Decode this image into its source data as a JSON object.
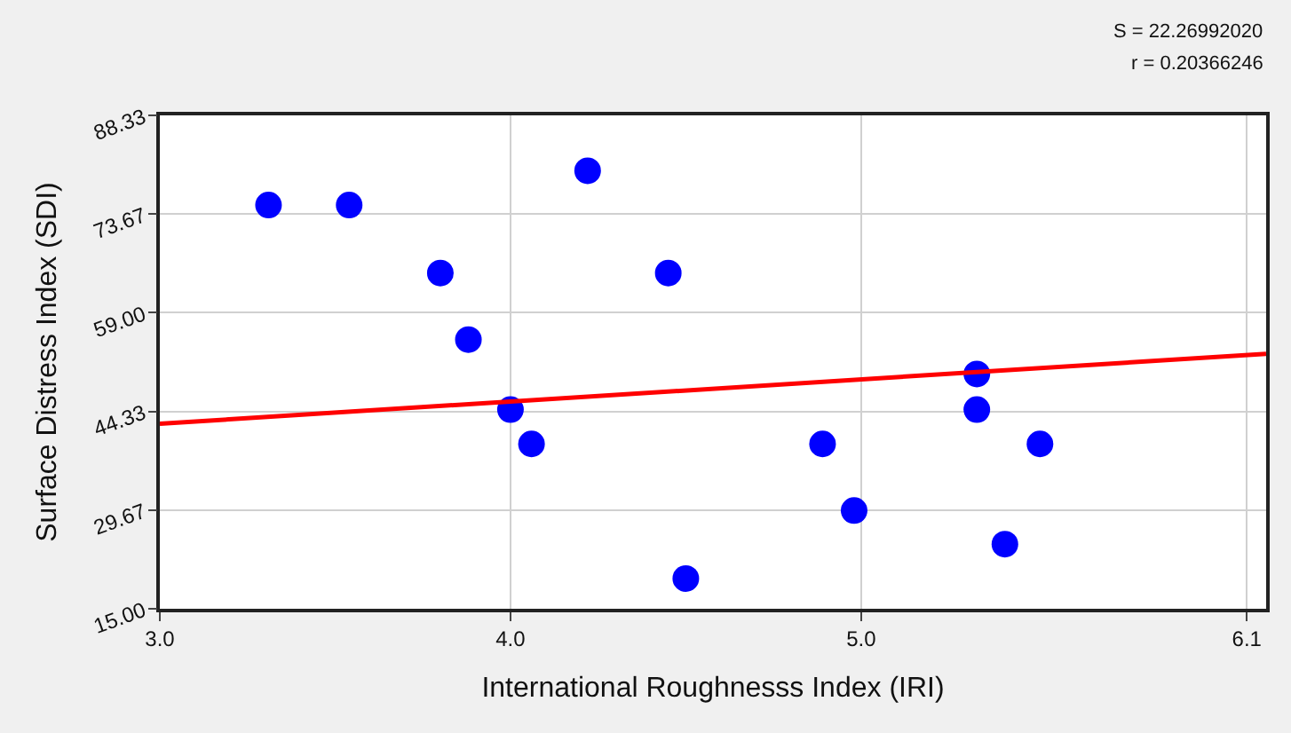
{
  "chart_data": {
    "type": "scatter",
    "xlabel": "International Roughnesss Index (IRI)",
    "ylabel": "Surface Distress Index (SDI)",
    "annotations": [
      "S = 22.26992020",
      "r = 0.20366246"
    ],
    "xlim": [
      3.0,
      6.155
    ],
    "xticks": [
      {
        "value": 3.0,
        "label": "3.0"
      },
      {
        "value": 4.0,
        "label": "4.0"
      },
      {
        "value": 5.0,
        "label": "5.0"
      },
      {
        "value": 6.1,
        "label": "6.1"
      }
    ],
    "ylim": [
      15.0,
      88.33
    ],
    "yticks": [
      {
        "value": 15.0,
        "label": "15.00"
      },
      {
        "value": 29.67,
        "label": "29.67"
      },
      {
        "value": 44.33,
        "label": "44.33"
      },
      {
        "value": 59.0,
        "label": "59.00"
      },
      {
        "value": 73.67,
        "label": "73.67"
      },
      {
        "value": 88.33,
        "label": "88.33"
      }
    ],
    "grid": true,
    "marker": "circle",
    "series": [
      {
        "color": "#0000ff",
        "x": [
          3.31,
          3.54,
          3.8,
          3.88,
          4.0,
          4.06,
          4.22,
          4.45,
          4.5,
          4.89,
          4.98,
          5.33,
          5.33,
          5.41,
          5.51
        ],
        "values": [
          75.0,
          75.0,
          64.9,
          55.0,
          44.6,
          39.5,
          80.1,
          64.9,
          19.5,
          39.5,
          29.6,
          49.9,
          44.6,
          24.6,
          39.5
        ]
      },
      {
        "type": "line",
        "color": "#ff0000",
        "marker": "none",
        "x": [
          3.0,
          6.155
        ],
        "values": [
          42.5,
          52.9
        ]
      }
    ]
  }
}
